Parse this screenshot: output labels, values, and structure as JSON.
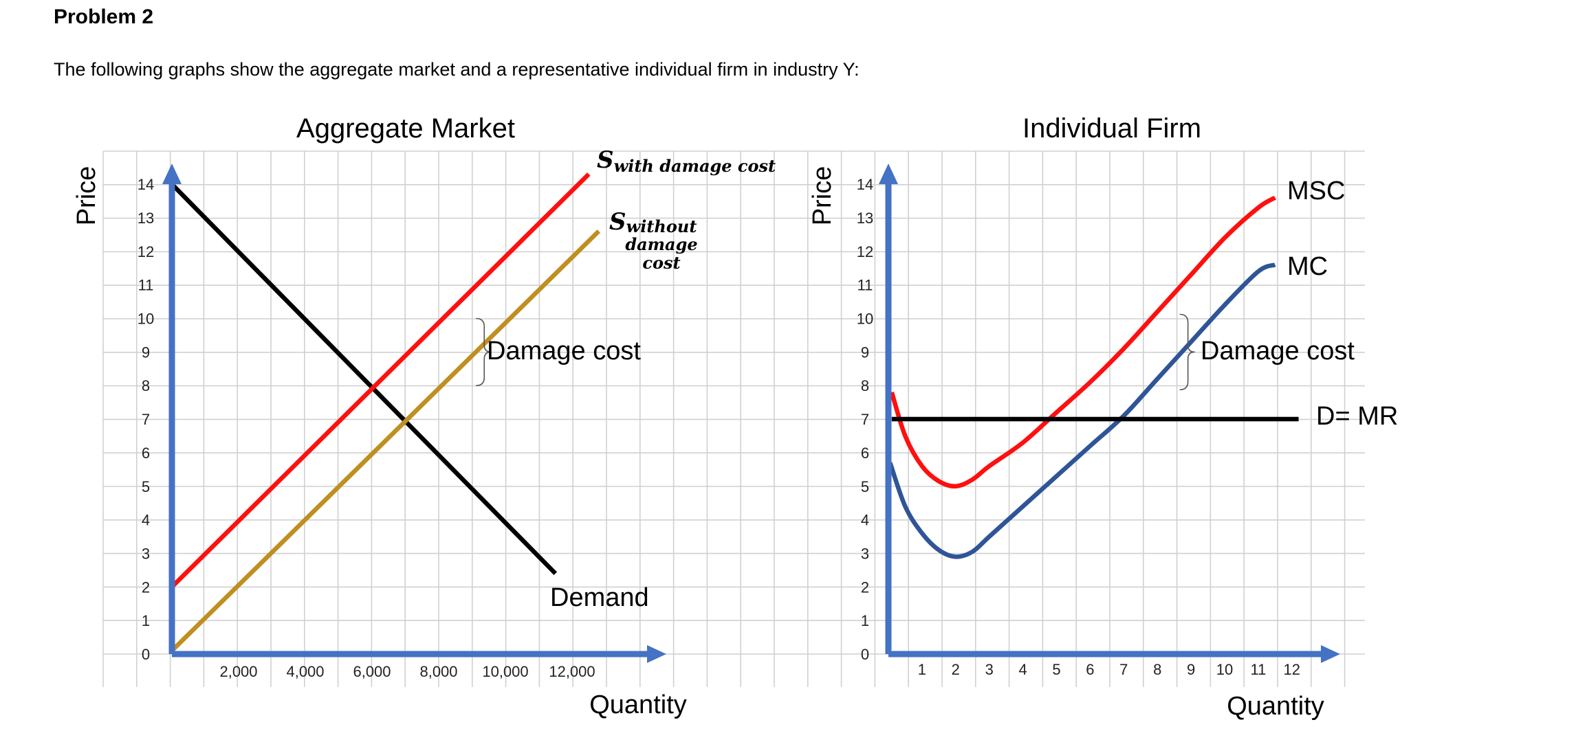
{
  "problem": {
    "heading": "Problem 2",
    "intro": "The following graphs show the aggregate market and a representative individual firm in industry Y:"
  },
  "colors": {
    "axis": "#4472C4",
    "grid": "#d0d0d0",
    "red": "#FF0F0F",
    "gold": "#BF8F20",
    "black": "#000000",
    "blue": "#2F5597"
  },
  "chart_data": [
    {
      "type": "line",
      "title": "Aggregate Market",
      "xlabel": "Quantity",
      "ylabel": "Price",
      "xlim": [
        0,
        14000
      ],
      "ylim": [
        0,
        14
      ],
      "x_ticks": [
        2000,
        4000,
        6000,
        8000,
        10000,
        12000
      ],
      "x_tick_labels": [
        "2,000",
        "4,000",
        "6,000",
        "8,000",
        "10,000",
        "12,000"
      ],
      "y_ticks": [
        0,
        1,
        2,
        3,
        4,
        5,
        6,
        7,
        8,
        9,
        10,
        11,
        12,
        13,
        14
      ],
      "y_tick_labels": [
        "0",
        "1",
        "2",
        "3",
        "4",
        "5",
        "6",
        "7",
        "8",
        "9",
        "10",
        "11",
        "12",
        "13",
        "14"
      ],
      "grid": true,
      "series": [
        {
          "name": "Demand",
          "color": "black",
          "points": [
            [
              0,
              14
            ],
            [
              11500,
              2.4
            ]
          ]
        },
        {
          "name": "S with damage cost",
          "color": "red",
          "points": [
            [
              0,
              2
            ],
            [
              12500,
              14.3
            ]
          ]
        },
        {
          "name": "S without damage cost",
          "color": "gold",
          "points": [
            [
              0,
              0.1
            ],
            [
              12800,
              12.6
            ]
          ]
        }
      ],
      "annotations": {
        "demand_label": "Demand",
        "s_with_main": "S",
        "s_with_sub": "with damage cost",
        "s_without_main": "S",
        "s_without_sub": [
          "without",
          "damage",
          "cost"
        ],
        "damage_cost": "Damage cost",
        "brace": {
          "x": 8500,
          "y_low": 8,
          "y_high": 10
        }
      }
    },
    {
      "type": "line",
      "title": "Individual Firm",
      "xlabel": "Quantity",
      "ylabel": "Price",
      "xlim": [
        0,
        14
      ],
      "ylim": [
        0,
        14
      ],
      "x_ticks": [
        1,
        2,
        3,
        4,
        5,
        6,
        7,
        8,
        9,
        10,
        11,
        12
      ],
      "x_tick_labels": [
        "1",
        "2",
        "3",
        "4",
        "5",
        "6",
        "7",
        "8",
        "9",
        "10",
        "11",
        "12"
      ],
      "y_ticks": [
        0,
        1,
        2,
        3,
        4,
        5,
        6,
        7,
        8,
        9,
        10,
        11,
        12,
        13,
        14
      ],
      "y_tick_labels": [
        "0",
        "1",
        "2",
        "3",
        "4",
        "5",
        "6",
        "7",
        "8",
        "9",
        "10",
        "11",
        "12",
        "13",
        "14"
      ],
      "grid": true,
      "series": [
        {
          "name": "MSC",
          "color": "red",
          "points": [
            [
              0.1,
              7.8
            ],
            [
              0.5,
              6.5
            ],
            [
              1,
              5.6
            ],
            [
              1.5,
              5.15
            ],
            [
              2,
              5.0
            ],
            [
              2.5,
              5.2
            ],
            [
              3,
              5.6
            ],
            [
              4,
              6.3
            ],
            [
              5,
              7.2
            ],
            [
              6,
              8.1
            ],
            [
              7,
              9.1
            ],
            [
              8,
              10.2
            ],
            [
              9,
              11.3
            ],
            [
              10,
              12.4
            ],
            [
              11,
              13.3
            ],
            [
              11.5,
              13.6
            ]
          ]
        },
        {
          "name": "MC",
          "color": "blue",
          "points": [
            [
              0.05,
              5.7
            ],
            [
              0.5,
              4.4
            ],
            [
              1,
              3.6
            ],
            [
              1.5,
              3.1
            ],
            [
              2,
              2.9
            ],
            [
              2.5,
              3.05
            ],
            [
              3,
              3.5
            ],
            [
              4,
              4.4
            ],
            [
              5,
              5.3
            ],
            [
              6,
              6.2
            ],
            [
              7,
              7.1
            ],
            [
              8,
              8.2
            ],
            [
              9,
              9.3
            ],
            [
              10,
              10.4
            ],
            [
              11,
              11.4
            ],
            [
              11.5,
              11.6
            ]
          ]
        },
        {
          "name": "D= MR",
          "color": "black",
          "points": [
            [
              0.1,
              7
            ],
            [
              12.2,
              7
            ]
          ]
        }
      ],
      "annotations": {
        "msc_label": "MSC",
        "mc_label": "MC",
        "dmr_label": "D= MR",
        "damage_cost": "Damage cost",
        "brace": {
          "x": 8.5,
          "y_low": 8.0,
          "y_high": 10.0
        }
      }
    }
  ]
}
